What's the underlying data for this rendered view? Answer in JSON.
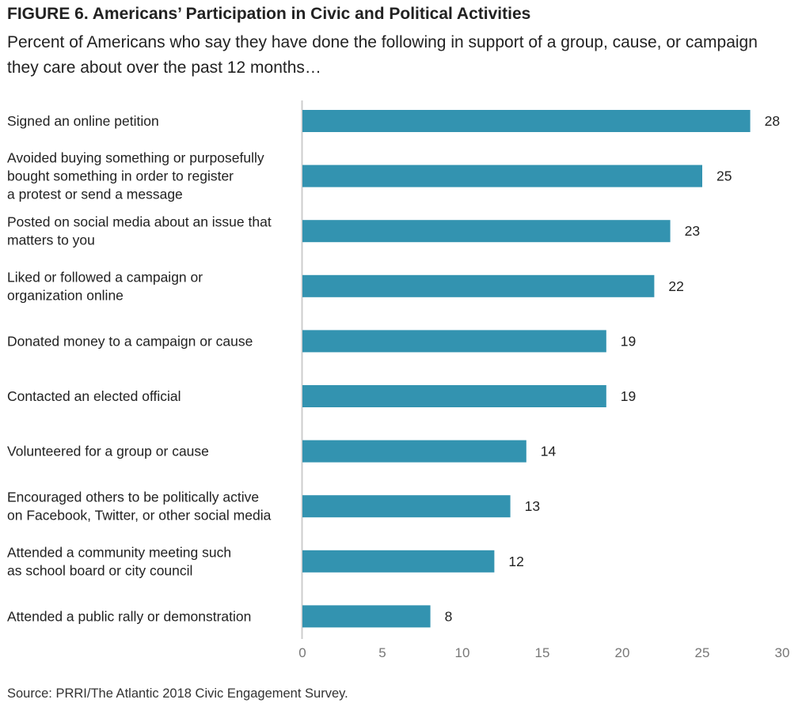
{
  "figure": {
    "title": "FIGURE 6. Americans’ Participation in Civic and Political Activities",
    "subtitle": "Percent of Americans who say they have done the following in support of a group, cause, or campaign they care about over the past 12 months…",
    "source": "Source: PRRI/The Atlantic 2018 Civic Engagement Survey."
  },
  "chart_data": {
    "type": "bar",
    "orientation": "horizontal",
    "title": "FIGURE 6. Americans’ Participation in Civic and Political Activities",
    "subtitle": "Percent of Americans who say they have done the following in support of a group, cause, or campaign they care about over the past 12 months…",
    "categories": [
      [
        "Signed an online petition"
      ],
      [
        "Avoided buying something or purposefully",
        "bought something in order to register",
        "a protest or send a message"
      ],
      [
        "Posted on social media about an issue that",
        "matters to you"
      ],
      [
        "Liked or followed a campaign or",
        "organization online"
      ],
      [
        "Donated money to a campaign or cause"
      ],
      [
        "Contacted an elected official"
      ],
      [
        "Volunteered for a group or cause"
      ],
      [
        "Encouraged others to be politically active",
        "on Facebook, Twitter, or other social media"
      ],
      [
        "Attended a community meeting such",
        "as school board or city council"
      ],
      [
        "Attended a public rally or demonstration"
      ]
    ],
    "values": [
      28,
      25,
      23,
      22,
      19,
      19,
      14,
      13,
      12,
      8
    ],
    "xlim": [
      0,
      30
    ],
    "xticks": [
      0,
      5,
      10,
      15,
      20,
      25,
      30
    ],
    "xlabel": "",
    "ylabel": "",
    "grid": false,
    "legend": "none",
    "bar_color": "#3393b0",
    "axis_color": "#cccccc"
  }
}
